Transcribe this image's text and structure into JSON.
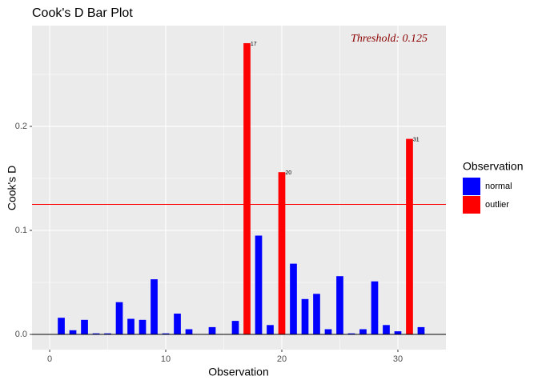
{
  "chart_data": {
    "type": "bar",
    "title": "Cook's D Bar Plot",
    "x_label": "Observation",
    "y_label": "Cook's D",
    "x": [
      1,
      2,
      3,
      4,
      5,
      6,
      7,
      8,
      9,
      10,
      11,
      12,
      13,
      14,
      15,
      16,
      17,
      18,
      19,
      20,
      21,
      22,
      23,
      24,
      25,
      26,
      27,
      28,
      29,
      30,
      31,
      32
    ],
    "series": [
      {
        "name": "normal",
        "color": "#0000ff",
        "values": [
          0.016,
          0.004,
          0.014,
          0.001,
          0.001,
          0.031,
          0.015,
          0.014,
          0.053,
          0.001,
          0.02,
          0.005,
          0.0003,
          0.007,
          0.0002,
          0.013,
          null,
          0.095,
          0.009,
          null,
          0.068,
          0.034,
          0.039,
          0.005,
          0.056,
          0.001,
          0.005,
          0.051,
          0.009,
          0.003,
          null,
          0.007
        ]
      },
      {
        "name": "outlier",
        "color": "#ff0000",
        "values": [
          null,
          null,
          null,
          null,
          null,
          null,
          null,
          null,
          null,
          null,
          null,
          null,
          null,
          null,
          null,
          null,
          0.28,
          null,
          null,
          0.156,
          null,
          null,
          null,
          null,
          null,
          null,
          null,
          null,
          null,
          null,
          0.188,
          null
        ]
      }
    ],
    "xlim": [
      -1.52,
      34.14
    ],
    "ylim": [
      -0.0146,
      0.2969
    ],
    "xticks": [
      0,
      10,
      20,
      30
    ],
    "yticks": [
      {
        "value": 0,
        "label": "0.0"
      },
      0.1,
      0.2
    ],
    "minor_xticks": [
      5,
      15,
      25
    ],
    "minor_yticks": [
      0.05,
      0.15,
      0.25
    ],
    "grid": true,
    "legend_title": "Observation",
    "legend_position": "right",
    "threshold": 0.125,
    "threshold_color": "#ff0000",
    "threshold_label": "Threshold: 0.125",
    "threshold_label_color": "#8b0000",
    "label_series": "outlier"
  }
}
